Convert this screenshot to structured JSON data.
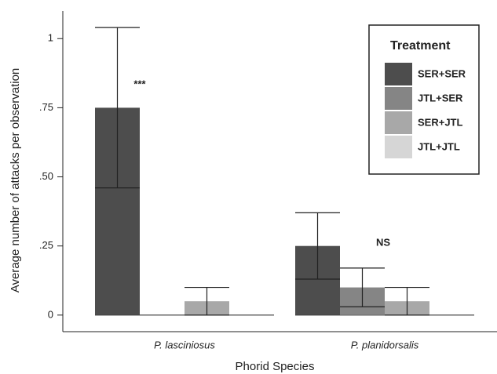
{
  "chart_data": {
    "type": "bar",
    "y_label": "Average number of attacks per observation",
    "x_label": "Phorid Species",
    "categories": [
      "P. lasciniosus",
      "P. planidorsalis"
    ],
    "series": [
      {
        "name": "SER+SER",
        "color": "#4d4d4d",
        "values": [
          0.75,
          0.25
        ],
        "errors": [
          0.29,
          0.12
        ]
      },
      {
        "name": "JTL+SER",
        "color": "#858585",
        "values": [
          0,
          0.1
        ],
        "errors": [
          0,
          0.07
        ]
      },
      {
        "name": "SER+JTL",
        "color": "#a8a8a8",
        "values": [
          0.05,
          0.05
        ],
        "errors": [
          0.05,
          0.05
        ]
      },
      {
        "name": "JTL+JTL",
        "color": "#d6d6d6",
        "values": [
          0,
          0
        ],
        "errors": [
          0,
          0
        ]
      }
    ],
    "annotations": [
      "***",
      "NS"
    ],
    "legend_title": "Treatment",
    "ylim": [
      -0.06,
      1.1
    ],
    "yticks": [
      0,
      {
        "value": 0.25,
        "label": ".25"
      },
      {
        "value": 0.5,
        "label": ".50"
      },
      {
        "value": 0.75,
        "label": ".75"
      },
      1
    ]
  }
}
